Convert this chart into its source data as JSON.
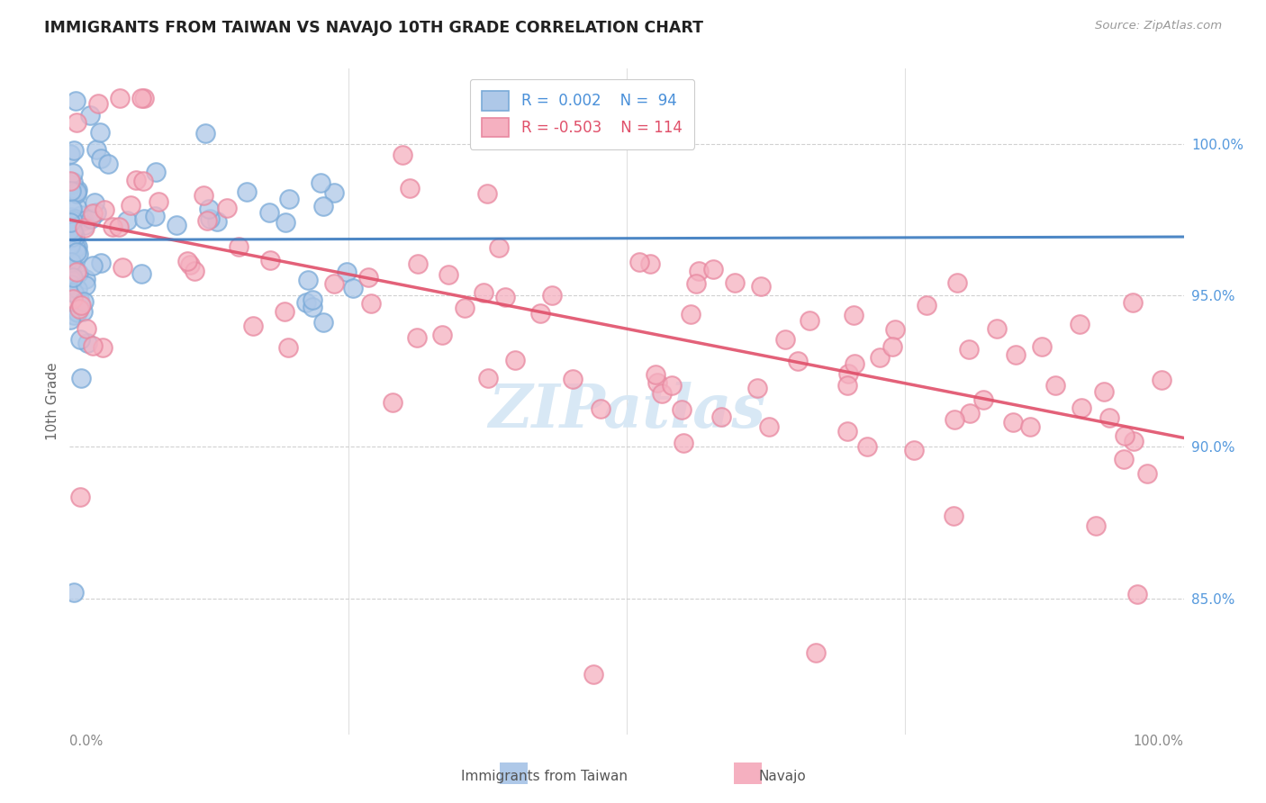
{
  "title": "IMMIGRANTS FROM TAIWAN VS NAVAJO 10TH GRADE CORRELATION CHART",
  "source": "Source: ZipAtlas.com",
  "ylabel": "10th Grade",
  "taiwan_color": "#aec8e8",
  "navajo_color": "#f5b0c0",
  "taiwan_edge_color": "#7aaad8",
  "navajo_edge_color": "#e888a0",
  "taiwan_line_color": "#3a7abf",
  "navajo_line_color": "#e0506a",
  "background_color": "#ffffff",
  "right_tick_color": "#4a90d9",
  "ytick_label_color": "#5599dd",
  "grid_color": "#cccccc",
  "title_color": "#222222",
  "source_color": "#999999",
  "axis_label_color": "#666666",
  "xaxis_tick_color": "#888888",
  "watermark_color": "#d8e8f5",
  "legend_text_color_1": "#4a90d9",
  "legend_text_color_2": "#e0506a"
}
